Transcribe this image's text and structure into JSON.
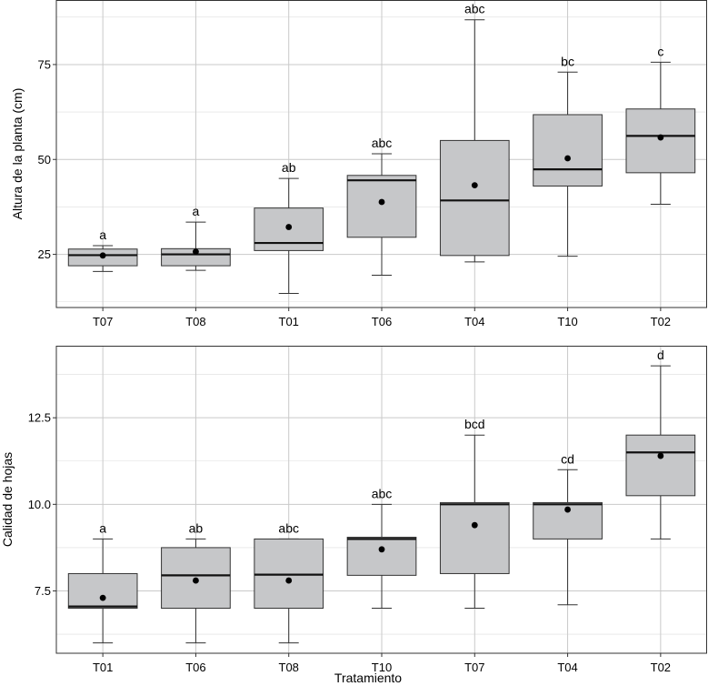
{
  "chart_data": [
    {
      "type": "box",
      "xlabel": "",
      "ylabel": "Altura de la planta (cm)",
      "ylim": [
        11,
        92
      ],
      "yticks": [
        25,
        50,
        75
      ],
      "grid": true,
      "box_fill": "#c6c7c9",
      "categories": [
        "T07",
        "T08",
        "T01",
        "T06",
        "T04",
        "T10",
        "T02"
      ],
      "boxes": [
        {
          "min": 20.5,
          "q1": 22.0,
          "median": 24.8,
          "q3": 26.4,
          "max": 27.3,
          "mean": 24.7,
          "letter": "a"
        },
        {
          "min": 20.8,
          "q1": 22.0,
          "median": 25.0,
          "q3": 26.5,
          "max": 33.5,
          "mean": 25.7,
          "letter": "a"
        },
        {
          "min": 14.7,
          "q1": 26.0,
          "median": 28.0,
          "q3": 37.2,
          "max": 45.0,
          "mean": 32.2,
          "letter": "ab"
        },
        {
          "min": 19.5,
          "q1": 29.5,
          "median": 44.5,
          "q3": 45.8,
          "max": 51.5,
          "mean": 38.8,
          "letter": "abc"
        },
        {
          "min": 23.0,
          "q1": 24.7,
          "median": 39.2,
          "q3": 55.0,
          "max": 86.8,
          "mean": 43.2,
          "letter": "abc"
        },
        {
          "min": 24.5,
          "q1": 43.0,
          "median": 47.4,
          "q3": 61.8,
          "max": 73.0,
          "mean": 50.3,
          "letter": "bc"
        },
        {
          "min": 38.2,
          "q1": 46.5,
          "median": 56.2,
          "q3": 63.3,
          "max": 75.6,
          "mean": 55.8,
          "letter": "c"
        }
      ]
    },
    {
      "type": "box",
      "xlabel": "Tratamiento",
      "ylabel": "Calidad de hojas",
      "ylim": [
        5.7,
        14.58
      ],
      "yticks": [
        7.5,
        10.0,
        12.5
      ],
      "ytick_labels": [
        "7.5",
        "10.0",
        "12.5"
      ],
      "grid": true,
      "box_fill": "#c6c7c9",
      "categories": [
        "T01",
        "T06",
        "T08",
        "T10",
        "T07",
        "T04",
        "T02"
      ],
      "boxes": [
        {
          "min": 6.0,
          "q1": 7.0,
          "median": 7.05,
          "q3": 8.0,
          "max": 9.0,
          "mean": 7.3,
          "letter": "a"
        },
        {
          "min": 6.0,
          "q1": 7.0,
          "median": 7.95,
          "q3": 8.75,
          "max": 9.0,
          "mean": 7.8,
          "letter": "ab"
        },
        {
          "min": 6.0,
          "q1": 7.0,
          "median": 7.97,
          "q3": 9.0,
          "max": 9.0,
          "mean": 7.8,
          "letter": "abc"
        },
        {
          "min": 7.0,
          "q1": 7.95,
          "median": 9.0,
          "q3": 9.05,
          "max": 10.0,
          "mean": 8.7,
          "letter": "abc"
        },
        {
          "min": 7.0,
          "q1": 8.0,
          "median": 10.0,
          "q3": 10.05,
          "max": 12.0,
          "mean": 9.4,
          "letter": "bcd"
        },
        {
          "min": 7.1,
          "q1": 9.0,
          "median": 10.0,
          "q3": 10.05,
          "max": 11.0,
          "mean": 9.85,
          "letter": "cd"
        },
        {
          "min": 9.0,
          "q1": 10.25,
          "median": 11.5,
          "q3": 12.0,
          "max": 14.0,
          "mean": 11.4,
          "letter": "d"
        }
      ]
    }
  ]
}
